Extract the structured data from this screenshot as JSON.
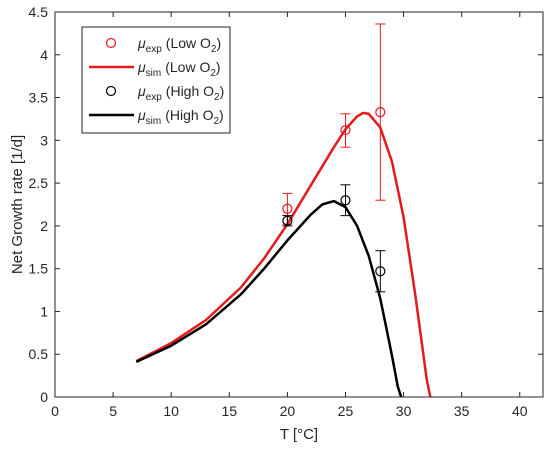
{
  "chart_data": {
    "type": "line",
    "xlabel": "T [°C]",
    "ylabel": "Net Growth rate [1/d]",
    "xlim": [
      0,
      42
    ],
    "ylim": [
      0,
      4.5
    ],
    "xticks": [
      0,
      5,
      10,
      15,
      20,
      25,
      30,
      35,
      40
    ],
    "yticks": [
      0,
      0.5,
      1,
      1.5,
      2,
      2.5,
      3,
      3.5,
      4,
      4.5
    ],
    "grid": false,
    "legend_position": "top-left",
    "colors": {
      "low": "#e41a1c",
      "high": "#000000"
    },
    "legend": [
      {
        "symbol": "μ",
        "sub": "exp",
        "condition": "(Low O",
        "o2sub": "2",
        "close": ")"
      },
      {
        "symbol": "μ",
        "sub": "sim",
        "condition": "(Low O",
        "o2sub": "2",
        "close": ")"
      },
      {
        "symbol": "μ",
        "sub": "exp",
        "condition": "(High O",
        "o2sub": "2",
        "close": ")"
      },
      {
        "symbol": "μ",
        "sub": "sim",
        "condition": "(High O",
        "o2sub": "2",
        "close": ")"
      }
    ],
    "series": [
      {
        "kind": "scatter-errorbar",
        "color": "#e41a1c",
        "points": [
          {
            "x": 20,
            "y": 2.2,
            "ylow": 2.02,
            "yhigh": 2.38
          },
          {
            "x": 25,
            "y": 3.12,
            "ylow": 2.92,
            "yhigh": 3.31
          },
          {
            "x": 28,
            "y": 3.33,
            "ylow": 2.3,
            "yhigh": 4.36
          }
        ]
      },
      {
        "kind": "line",
        "color": "#e41a1c",
        "x": [
          7,
          10,
          13,
          16,
          18,
          20,
          22,
          24,
          25,
          26,
          26.5,
          27,
          28,
          29,
          30,
          31,
          31.5,
          32,
          32.3
        ],
        "y": [
          0.42,
          0.63,
          0.9,
          1.28,
          1.62,
          2.02,
          2.47,
          2.92,
          3.13,
          3.28,
          3.32,
          3.31,
          3.15,
          2.75,
          2.1,
          1.2,
          0.7,
          0.2,
          0.0
        ]
      },
      {
        "kind": "scatter-errorbar",
        "color": "#000000",
        "points": [
          {
            "x": 20,
            "y": 2.06,
            "ylow": 2.0,
            "yhigh": 2.12
          },
          {
            "x": 25,
            "y": 2.3,
            "ylow": 2.12,
            "yhigh": 2.48
          },
          {
            "x": 28,
            "y": 1.47,
            "ylow": 1.23,
            "yhigh": 1.71
          }
        ]
      },
      {
        "kind": "line",
        "color": "#000000",
        "x": [
          7,
          10,
          13,
          16,
          18,
          20,
          22,
          23,
          24,
          25,
          26,
          27,
          28,
          28.5,
          29,
          29.5,
          29.8
        ],
        "y": [
          0.41,
          0.6,
          0.85,
          1.2,
          1.5,
          1.83,
          2.13,
          2.25,
          2.29,
          2.22,
          2.0,
          1.65,
          1.15,
          0.82,
          0.48,
          0.12,
          0.0
        ]
      }
    ]
  }
}
